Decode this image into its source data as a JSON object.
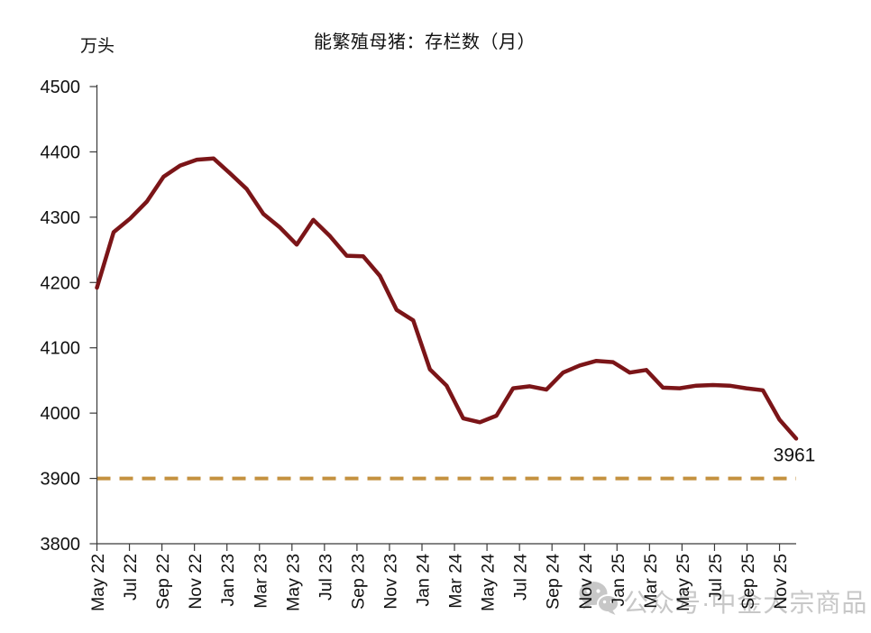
{
  "chart_data": {
    "type": "line",
    "title": "能繁殖母猪：存栏数（月）",
    "unit_label": "万头",
    "categories": [
      "May 22",
      "Jun 22",
      "Jul 22",
      "Aug 22",
      "Sep 22",
      "Oct 22",
      "Nov 22",
      "Dec 22",
      "Jan 23",
      "Feb 23",
      "Mar 23",
      "Apr 23",
      "May 23",
      "Jun 23",
      "Jul 23",
      "Aug 23",
      "Sep 23",
      "Oct 23",
      "Nov 23",
      "Dec 23",
      "Jan 24",
      "Feb 24",
      "Mar 24",
      "Apr 24",
      "May 24",
      "Jun 24",
      "Jul 24",
      "Aug 24",
      "Sep 24",
      "Oct 24",
      "Nov 24",
      "Dec 24",
      "Jan 25",
      "Feb 25",
      "Mar 25",
      "Apr 25",
      "May 25",
      "Jun 25",
      "Jul 25",
      "Aug 25",
      "Sep 25",
      "Oct 25",
      "Nov 25"
    ],
    "values": [
      4192,
      4277,
      4298,
      4324,
      4362,
      4379,
      4388,
      4390,
      4367,
      4343,
      4305,
      4284,
      4258,
      4296,
      4271,
      4241,
      4240,
      4210,
      4158,
      4142,
      4067,
      4042,
      3992,
      3986,
      3996,
      4038,
      4041,
      4036,
      4062,
      4073,
      4080,
      4078,
      4062,
      4066,
      4039,
      4038,
      4042,
      4043,
      4042,
      4038,
      4035,
      3990,
      3961
    ],
    "x_tick_labels": [
      "May 22",
      "Jul 22",
      "Sep 22",
      "Nov 22",
      "Jan 23",
      "Mar 23",
      "May 23",
      "Jul 23",
      "Sep 23",
      "Nov 23",
      "Jan 24",
      "Mar 24",
      "May 24",
      "Jul 24",
      "Sep 24",
      "Nov 24",
      "Jan 25",
      "Mar 25",
      "May 25",
      "Jul 25",
      "Sep 25",
      "Nov 25"
    ],
    "y_ticks": [
      3800,
      3900,
      4000,
      4100,
      4200,
      4300,
      4400,
      4500
    ],
    "ylim": [
      3800,
      4500
    ],
    "grid": false,
    "legend_position": "none",
    "line_color": "#7B1518",
    "axis_color": "#3a3a3a",
    "tick_label_color": "#111111",
    "reference_line": {
      "value": 3900,
      "style": "dashed",
      "color": "#C4913F"
    },
    "last_value_annotation": "3961"
  },
  "watermark": {
    "text": "公众号·中金大宗商品",
    "icon": "wechat-icon"
  }
}
